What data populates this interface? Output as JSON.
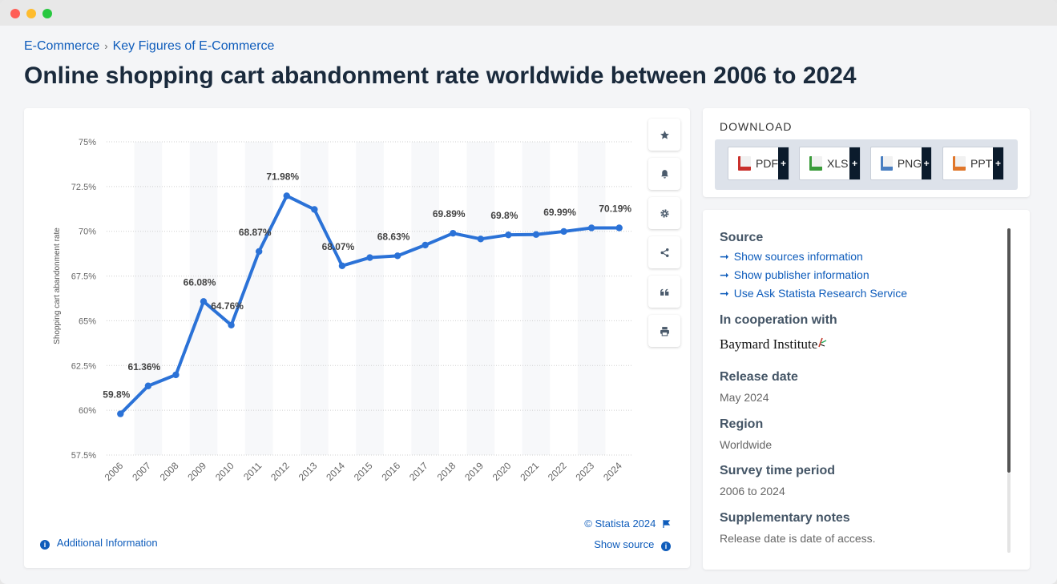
{
  "breadcrumb": {
    "items": [
      "E-Commerce",
      "Key Figures of E-Commerce"
    ],
    "separator": "›"
  },
  "page_title": "Online shopping cart abandonment rate worldwide between 2006 to 2024",
  "chart_data": {
    "type": "line",
    "x": [
      "2006",
      "2007",
      "2008",
      "2009",
      "2010",
      "2011",
      "2012",
      "2013",
      "2014",
      "2015",
      "2016",
      "2017",
      "2018",
      "2019",
      "2020",
      "2021",
      "2022",
      "2023",
      "2024"
    ],
    "series": [
      {
        "values": [
          59.8,
          61.36,
          61.98,
          66.08,
          64.76,
          68.87,
          71.98,
          71.22,
          68.07,
          68.53,
          68.63,
          69.23,
          69.89,
          69.57,
          69.8,
          69.82,
          69.99,
          70.19,
          70.19
        ],
        "data_labels": [
          "59.8%",
          "61.36%",
          "",
          "66.08%",
          "64.76%",
          "68.87%",
          "71.98%",
          "",
          "68.07%",
          "",
          "68.63%",
          "",
          "69.89%",
          "",
          "69.8%",
          "",
          "69.99%",
          "",
          "70.19%"
        ]
      }
    ],
    "ylabel": "Shopping cart abandonment rate",
    "xlabel": "",
    "ylim": [
      57.5,
      75
    ],
    "yticks": [
      57.5,
      60,
      62.5,
      65,
      67.5,
      70,
      72.5,
      75
    ],
    "ytick_labels": [
      "57.5%",
      "60%",
      "62.5%",
      "65%",
      "67.5%",
      "70%",
      "72.5%",
      "75%"
    ],
    "grid": true,
    "line_color": "#2b72d7"
  },
  "toolbar": {
    "icons": [
      "star-icon",
      "bell-icon",
      "gear-icon",
      "share-icon",
      "quote-icon",
      "print-icon"
    ]
  },
  "chart_footer": {
    "copyright": "© Statista 2024",
    "show_source": "Show source",
    "additional_info": "Additional Information"
  },
  "download": {
    "title": "DOWNLOAD",
    "buttons": [
      {
        "label": "PDF",
        "color": "#c9302c"
      },
      {
        "label": "XLS",
        "color": "#3a9b3a"
      },
      {
        "label": "PNG",
        "color": "#4a7fc1"
      },
      {
        "label": "PPT",
        "color": "#e0762a"
      }
    ],
    "plus": "+"
  },
  "info": {
    "source_heading": "Source",
    "source_links": [
      "Show sources information",
      "Show publisher information",
      "Use Ask Statista Research Service"
    ],
    "cooperation_heading": "In cooperation with",
    "cooperation_value": "Baymard Institute",
    "release_heading": "Release date",
    "release_value": "May 2024",
    "region_heading": "Region",
    "region_value": "Worldwide",
    "survey_heading": "Survey time period",
    "survey_value": "2006 to 2024",
    "notes_heading": "Supplementary notes",
    "notes_value": "Release date is date of access."
  }
}
